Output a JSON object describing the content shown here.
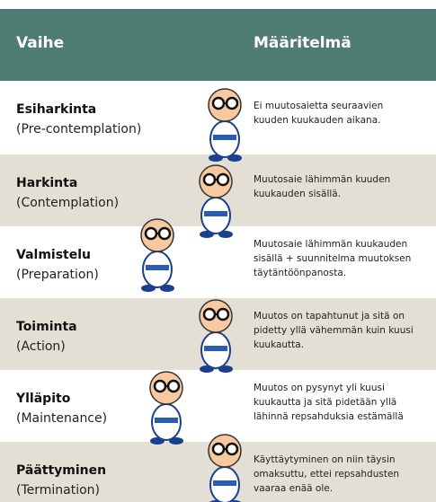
{
  "table": {
    "header": [
      "Vaihe",
      "Määritelmä"
    ],
    "rows": [
      {
        "stage": "Esiharkinta",
        "english": "(Pre-contemplation)",
        "definition": [
          "Ei muutosaietta seuraavien",
          "kuuden kuukauden aikana."
        ]
      },
      {
        "stage": "Harkinta",
        "english": "(Contemplation)",
        "definition": [
          "Muutosaie lähimmän kuuden",
          "kuukauden sisällä."
        ]
      },
      {
        "stage": "Valmistelu",
        "english": "(Preparation)",
        "definition": [
          "Muutosaie lähimmän kuukauden",
          "sisällä + suunnitelma muutoksen",
          "täytäntöönpanosta."
        ]
      },
      {
        "stage": "Toiminta",
        "english": "(Action)",
        "definition": [
          "Muutos on tapahtunut ja sitä on",
          "pidetty yllä vähemmän kuin kuusi",
          "kuukautta."
        ]
      },
      {
        "stage": "Ylläpito",
        "english": "(Maintenance)",
        "definition": [
          "Muutos on pysynyt yli kuusi",
          "kuukautta ja sitä pidetään yllä",
          "lähinnä repsahduksia estämällä"
        ]
      },
      {
        "stage": "Päättyminen",
        "english": "(Termination)",
        "definition": [
          "Käyttäytyminen on niin täysin",
          "omaksuttu, ettei repsahdusten",
          "vaaraa enää ole."
        ]
      }
    ]
  }
}
